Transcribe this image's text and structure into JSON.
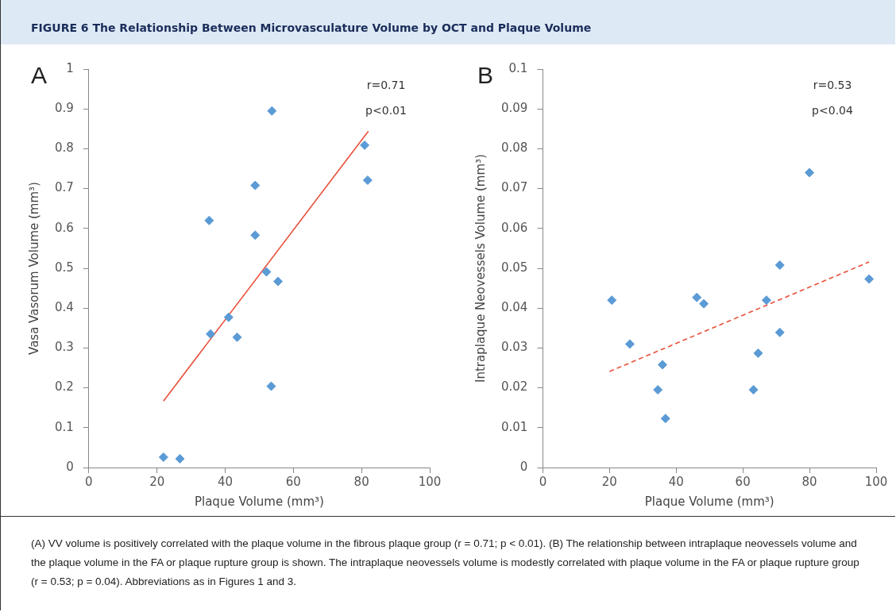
{
  "chart_data": [
    {
      "type": "scatter",
      "title": "FIGURE 6 The Relationship Between Microvasculature Volume by OCT and Plaque Volume",
      "subtitle": "A",
      "xlabel": "Plaque Volume (mm³)",
      "ylabel": "Vasa Vasorum Volume (mm³)",
      "x": [
        21.9,
        26.7,
        35.3,
        35.7,
        41.0,
        43.5,
        48.8,
        48.8,
        52.1,
        53.7,
        53.5,
        55.5,
        80.9,
        81.8
      ],
      "series": [
        {
          "type": "scatter",
          "color": "#5b9bd5",
          "values": [
            0.026,
            0.022,
            0.62,
            0.335,
            0.377,
            0.327,
            0.708,
            0.583,
            0.491,
            0.895,
            0.204,
            0.467,
            0.809,
            0.721
          ]
        },
        {
          "type": "line",
          "color": "#e8503a",
          "line_style": "solid",
          "marker": "none",
          "x": [
            21.9,
            82.0
          ],
          "values": [
            0.167,
            0.844
          ]
        }
      ],
      "xlim": [
        0,
        100
      ],
      "xticks": [
        0,
        20,
        40,
        60,
        80,
        100
      ],
      "ylim": [
        0,
        1
      ],
      "yticks": [
        0,
        0.1,
        0.2,
        0.3,
        0.4,
        0.5,
        0.6,
        0.7,
        0.8,
        0.9,
        1
      ],
      "marker": "diamond",
      "grid": false,
      "legend": false,
      "annotations": [
        "r=0.71",
        "p<0.01"
      ]
    },
    {
      "type": "scatter",
      "subtitle": "B",
      "xlabel": "Plaque Volume (mm³)",
      "ylabel": "Intraplaque Neovessels Volume (mm³)",
      "x": [
        20.7,
        26.1,
        34.5,
        35.9,
        36.8,
        46.2,
        48.3,
        63.2,
        64.6,
        67.1,
        71.1,
        71.1,
        80.0,
        97.9
      ],
      "series": [
        {
          "type": "scatter",
          "color": "#5b9bd5",
          "values": [
            0.042,
            0.031,
            0.0195,
            0.0258,
            0.0123,
            0.0427,
            0.0411,
            0.0195,
            0.0287,
            0.042,
            0.0508,
            0.0339,
            0.074,
            0.0473
          ]
        },
        {
          "type": "line",
          "color": "#e8503a",
          "line_style": "dashed",
          "marker": "none",
          "x": [
            20.0,
            97.9
          ],
          "values": [
            0.0241,
            0.0516
          ]
        }
      ],
      "xlim": [
        0,
        100
      ],
      "xticks": [
        0,
        20,
        40,
        60,
        80,
        100
      ],
      "ylim": [
        0,
        0.1
      ],
      "yticks": [
        0,
        0.01,
        0.02,
        0.03,
        0.04,
        0.05,
        0.06,
        0.07,
        0.08,
        0.09,
        0.1
      ],
      "marker": "diamond",
      "grid": false,
      "legend": false,
      "annotations": [
        "r=0.53",
        "p<0.04",
        "(A) VV volume is positively correlated with the plaque volume in the fibrous plaque group (r = 0.71; p < 0.01). (B) The relationship between intraplaque neovessels volume and the plaque volume in the FA or plaque rupture group is shown. The intraplaque neovessels volume is modestly correlated with plaque volume in the FA or plaque rupture group (r = 0.53; p = 0.04). Abbreviations as in Figures 1 and 3."
      ]
    }
  ]
}
